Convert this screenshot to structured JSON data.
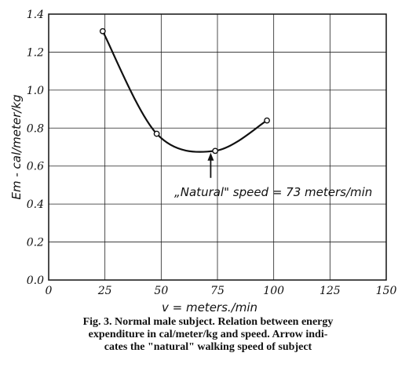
{
  "chart_data": {
    "type": "line",
    "xlabel": "v = meters./min",
    "ylabel": "Em - cal/meter/kg",
    "ylabel_subscript": "m",
    "xlim": [
      0,
      150
    ],
    "ylim": [
      0.0,
      1.4
    ],
    "x_ticks": [
      "0",
      "25",
      "50",
      "75",
      "100",
      "125",
      "150"
    ],
    "y_ticks": [
      "0.0",
      "0.2",
      "0.4",
      "0.6",
      "0.8",
      "1.0",
      "1.2",
      "1.4"
    ],
    "grid": true,
    "series": [
      {
        "x": [
          24,
          48,
          74,
          97
        ],
        "values": [
          1.31,
          0.77,
          0.68,
          0.84
        ]
      }
    ],
    "annotation": {
      "text": "„Natural\" speed = 73 meters/min",
      "x": 72,
      "y_arrow_tip": 0.67
    }
  },
  "caption": {
    "line1": "Fig. 3. Normal male subject. Relation between energy",
    "line2": "expenditure in cal/meter/kg and speed. Arrow indi-",
    "line3": "cates the \"natural\" walking speed of subject"
  }
}
